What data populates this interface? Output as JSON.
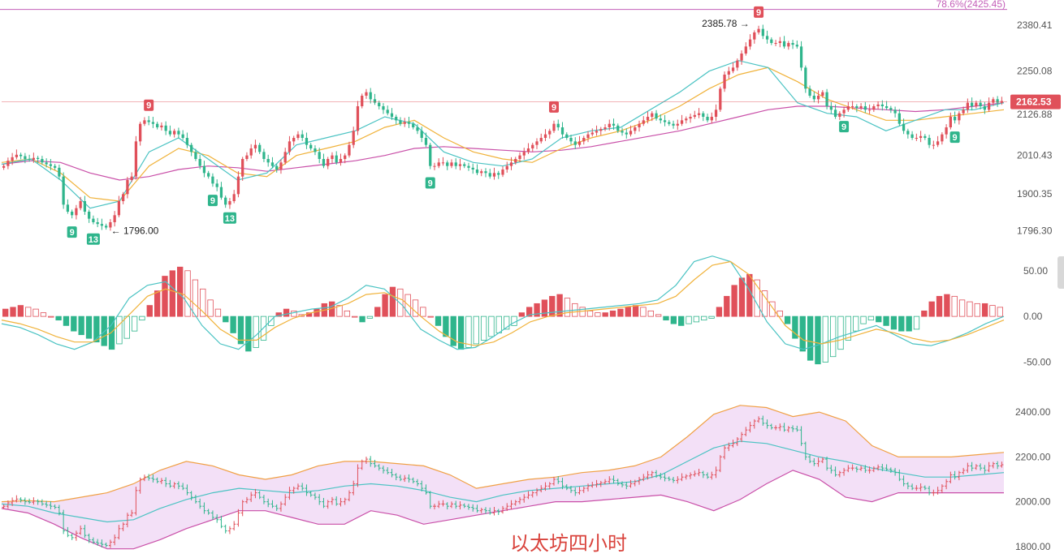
{
  "caption": "以太坊四小时",
  "colors": {
    "up": "#e0505a",
    "down": "#2fb58c",
    "ma_fast": "#4bc3c3",
    "ma_mid": "#f0b23a",
    "ma_slow": "#c94fa8",
    "band_fill": "#f3e0f7",
    "band_upper": "#f0a045",
    "band_lower": "#c94fa8",
    "band_mid": "#4bc3c3",
    "fib": "#c35fb8",
    "price_tag": "#e0505a"
  },
  "chart_data": [
    {
      "type": "candlestick",
      "panel": "price",
      "ylim": [
        1760,
        2420
      ],
      "yticks": [
        "2380.41",
        "2250.08",
        "2126.88",
        "2010.43",
        "1900.35",
        "1796.30"
      ],
      "ytick_values": [
        2380.41,
        2250.08,
        2126.88,
        2010.43,
        1900.35,
        1796.3
      ],
      "fib_level": {
        "label": "78.6%(2425.45)",
        "value": 2425.45
      },
      "current_price": {
        "label": "2162.53",
        "value": 2162.53
      },
      "annotations": [
        {
          "label": "2385.78 →",
          "value": 2385.78,
          "bar": 176
        },
        {
          "label": "← 1796.00",
          "value": 1796.0,
          "bar": 24
        }
      ],
      "td_signals": [
        {
          "label": "9",
          "kind": "sell",
          "bar": 34
        },
        {
          "label": "9",
          "kind": "buy",
          "bar": 16
        },
        {
          "label": "13",
          "kind": "buy",
          "bar": 21
        },
        {
          "label": "9",
          "kind": "buy",
          "bar": 49
        },
        {
          "label": "13",
          "kind": "buy",
          "bar": 53
        },
        {
          "label": "9",
          "kind": "buy",
          "bar": 100
        },
        {
          "label": "9",
          "kind": "sell",
          "bar": 129
        },
        {
          "label": "9",
          "kind": "sell",
          "bar": 177
        },
        {
          "label": "9",
          "kind": "buy",
          "bar": 197
        },
        {
          "label": "9",
          "kind": "buy",
          "bar": 223
        }
      ],
      "closes": [
        1980,
        1995,
        2005,
        2012,
        2008,
        2000,
        1998,
        2003,
        2000,
        1990,
        1985,
        1980,
        1975,
        1950,
        1870,
        1850,
        1840,
        1860,
        1880,
        1850,
        1830,
        1820,
        1815,
        1810,
        1805,
        1820,
        1840,
        1880,
        1900,
        1940,
        1950,
        2050,
        2100,
        2110,
        2105,
        2100,
        2090,
        2095,
        2080,
        2070,
        2080,
        2070,
        2060,
        2040,
        2020,
        2000,
        1980,
        1960,
        1950,
        1930,
        1920,
        1890,
        1870,
        1880,
        1900,
        1950,
        2000,
        2010,
        2030,
        2040,
        2020,
        2000,
        1990,
        1980,
        1970,
        1990,
        2020,
        2050,
        2060,
        2070,
        2060,
        2040,
        2030,
        2020,
        2000,
        1980,
        2000,
        2010,
        1990,
        2000,
        2010,
        2040,
        2080,
        2150,
        2180,
        2190,
        2170,
        2160,
        2150,
        2140,
        2130,
        2120,
        2110,
        2100,
        2105,
        2100,
        2090,
        2080,
        2060,
        2040,
        1980,
        1980,
        1990,
        1990,
        1980,
        1990,
        1980,
        1985,
        1980,
        1975,
        1970,
        1960,
        1965,
        1960,
        1950,
        1960,
        1955,
        1970,
        1980,
        1990,
        2000,
        2010,
        2020,
        2030,
        2040,
        2050,
        2060,
        2070,
        2080,
        2100,
        2090,
        2070,
        2060,
        2050,
        2040,
        2050,
        2060,
        2070,
        2075,
        2080,
        2085,
        2090,
        2100,
        2095,
        2080,
        2075,
        2070,
        2080,
        2090,
        2100,
        2110,
        2120,
        2130,
        2115,
        2110,
        2105,
        2100,
        2095,
        2100,
        2110,
        2115,
        2120,
        2125,
        2130,
        2120,
        2110,
        2120,
        2140,
        2200,
        2240,
        2250,
        2260,
        2280,
        2300,
        2320,
        2340,
        2360,
        2370,
        2350,
        2340,
        2330,
        2330,
        2335,
        2320,
        2330,
        2325,
        2320,
        2260,
        2200,
        2180,
        2170,
        2180,
        2190,
        2150,
        2140,
        2120,
        2130,
        2140,
        2150,
        2150,
        2145,
        2150,
        2140,
        2140,
        2150,
        2155,
        2150,
        2145,
        2140,
        2130,
        2100,
        2080,
        2070,
        2060,
        2060,
        2065,
        2060,
        2040,
        2040,
        2050,
        2070,
        2090,
        2120,
        2110,
        2130,
        2140,
        2160,
        2150,
        2160,
        2150,
        2140,
        2160,
        2170,
        2160,
        2165
      ],
      "ma_fast": [
        1985,
        2000,
        1940,
        1860,
        1880,
        2020,
        2060,
        2000,
        1940,
        1960,
        2040,
        2060,
        2080,
        2120,
        2100,
        2020,
        1990,
        1980,
        2000,
        2060,
        2080,
        2090,
        2140,
        2190,
        2250,
        2280,
        2260,
        2160,
        2130,
        2120,
        2080,
        2110,
        2140,
        2140,
        2160
      ],
      "ma_mid": [
        1990,
        2000,
        1960,
        1890,
        1880,
        1980,
        2030,
        2010,
        1960,
        1950,
        2010,
        2030,
        2050,
        2090,
        2110,
        2060,
        2020,
        2000,
        1990,
        2030,
        2060,
        2080,
        2110,
        2150,
        2200,
        2240,
        2260,
        2220,
        2170,
        2140,
        2110,
        2110,
        2120,
        2130,
        2140
      ],
      "ma_slow": [
        1985,
        1995,
        1990,
        1960,
        1940,
        1950,
        1970,
        1980,
        1975,
        1965,
        1975,
        1985,
        1995,
        2010,
        2030,
        2035,
        2030,
        2025,
        2020,
        2025,
        2035,
        2050,
        2065,
        2080,
        2100,
        2120,
        2140,
        2150,
        2150,
        2145,
        2140,
        2135,
        2140,
        2150,
        2160
      ]
    },
    {
      "type": "macd",
      "panel": "oscillator",
      "ylim": [
        -62,
        64
      ],
      "yticks": [
        "50.00",
        "0.00",
        "-50.00"
      ],
      "ytick_values": [
        50,
        0,
        -50
      ],
      "histogram": [
        8,
        10,
        12,
        10,
        8,
        4,
        0,
        -4,
        -10,
        -16,
        -20,
        -24,
        -28,
        -32,
        -36,
        -30,
        -24,
        -16,
        -4,
        12,
        28,
        44,
        50,
        54,
        50,
        40,
        30,
        18,
        8,
        -6,
        -18,
        -30,
        -38,
        -34,
        -26,
        -10,
        4,
        8,
        6,
        2,
        4,
        8,
        14,
        16,
        12,
        6,
        0,
        -6,
        -2,
        10,
        24,
        32,
        30,
        24,
        18,
        10,
        0,
        -10,
        -22,
        -32,
        -36,
        -34,
        -30,
        -26,
        -22,
        -18,
        -14,
        -10,
        4,
        10,
        14,
        18,
        22,
        24,
        20,
        14,
        10,
        6,
        4,
        4,
        6,
        8,
        10,
        12,
        10,
        6,
        2,
        -4,
        -8,
        -10,
        -8,
        -6,
        -4,
        -2,
        10,
        22,
        34,
        42,
        46,
        40,
        28,
        16,
        6,
        -8,
        -24,
        -38,
        -48,
        -52,
        -50,
        -44,
        -36,
        -26,
        -16,
        -8,
        -4,
        -6,
        -10,
        -14,
        -16,
        -16,
        -14,
        6,
        16,
        22,
        24,
        22,
        18,
        16,
        14,
        14,
        12,
        10
      ],
      "macd_line": [
        -8,
        -12,
        -20,
        -30,
        -36,
        -28,
        -10,
        20,
        34,
        38,
        20,
        -10,
        -30,
        -36,
        -20,
        0,
        4,
        8,
        10,
        20,
        34,
        30,
        12,
        -14,
        -26,
        -36,
        -34,
        -22,
        -8,
        2,
        4,
        6,
        8,
        10,
        12,
        14,
        18,
        34,
        60,
        66,
        60,
        30,
        -6,
        -30,
        -36,
        -30,
        -22,
        -16,
        -10,
        -20,
        -30,
        -32,
        -26,
        -18,
        -8,
        0
      ],
      "signal_line": [
        -4,
        -8,
        -14,
        -22,
        -28,
        -28,
        -18,
        2,
        22,
        30,
        24,
        6,
        -14,
        -26,
        -26,
        -12,
        -2,
        4,
        8,
        14,
        24,
        26,
        18,
        0,
        -16,
        -28,
        -32,
        -28,
        -18,
        -6,
        0,
        4,
        6,
        8,
        10,
        12,
        14,
        22,
        40,
        56,
        60,
        46,
        18,
        -10,
        -26,
        -30,
        -26,
        -20,
        -14,
        -18,
        -24,
        -28,
        -26,
        -20,
        -12,
        -4
      ]
    },
    {
      "type": "bollinger",
      "panel": "bands",
      "ylim": [
        1760,
        2440
      ],
      "yticks": [
        "2400.00",
        "2200.00",
        "2000.00",
        "1800.00"
      ],
      "ytick_values": [
        2400,
        2200,
        2000,
        1800
      ],
      "upper": [
        2000,
        2005,
        2000,
        2020,
        2040,
        2080,
        2140,
        2180,
        2160,
        2120,
        2100,
        2120,
        2160,
        2180,
        2180,
        2170,
        2160,
        2120,
        2060,
        2080,
        2100,
        2110,
        2130,
        2140,
        2160,
        2200,
        2290,
        2390,
        2430,
        2420,
        2380,
        2400,
        2360,
        2250,
        2200,
        2200,
        2200,
        2210,
        2220
      ],
      "middle": [
        1990,
        1980,
        1950,
        1930,
        1910,
        1920,
        1970,
        2010,
        2040,
        2060,
        2050,
        2040,
        2050,
        2070,
        2080,
        2070,
        2050,
        2020,
        2000,
        2030,
        2050,
        2060,
        2070,
        2080,
        2090,
        2120,
        2180,
        2240,
        2270,
        2260,
        2230,
        2200,
        2180,
        2150,
        2130,
        2110,
        2110,
        2120,
        2130
      ],
      "lower": [
        1970,
        1950,
        1900,
        1840,
        1790,
        1790,
        1830,
        1880,
        1920,
        1960,
        1960,
        1930,
        1900,
        1900,
        1960,
        1940,
        1900,
        1920,
        1940,
        1960,
        1980,
        2000,
        2000,
        2010,
        2020,
        2030,
        2000,
        1960,
        2010,
        2080,
        2140,
        2100,
        2020,
        2000,
        2040,
        2040,
        2040,
        2040,
        2040
      ]
    }
  ]
}
